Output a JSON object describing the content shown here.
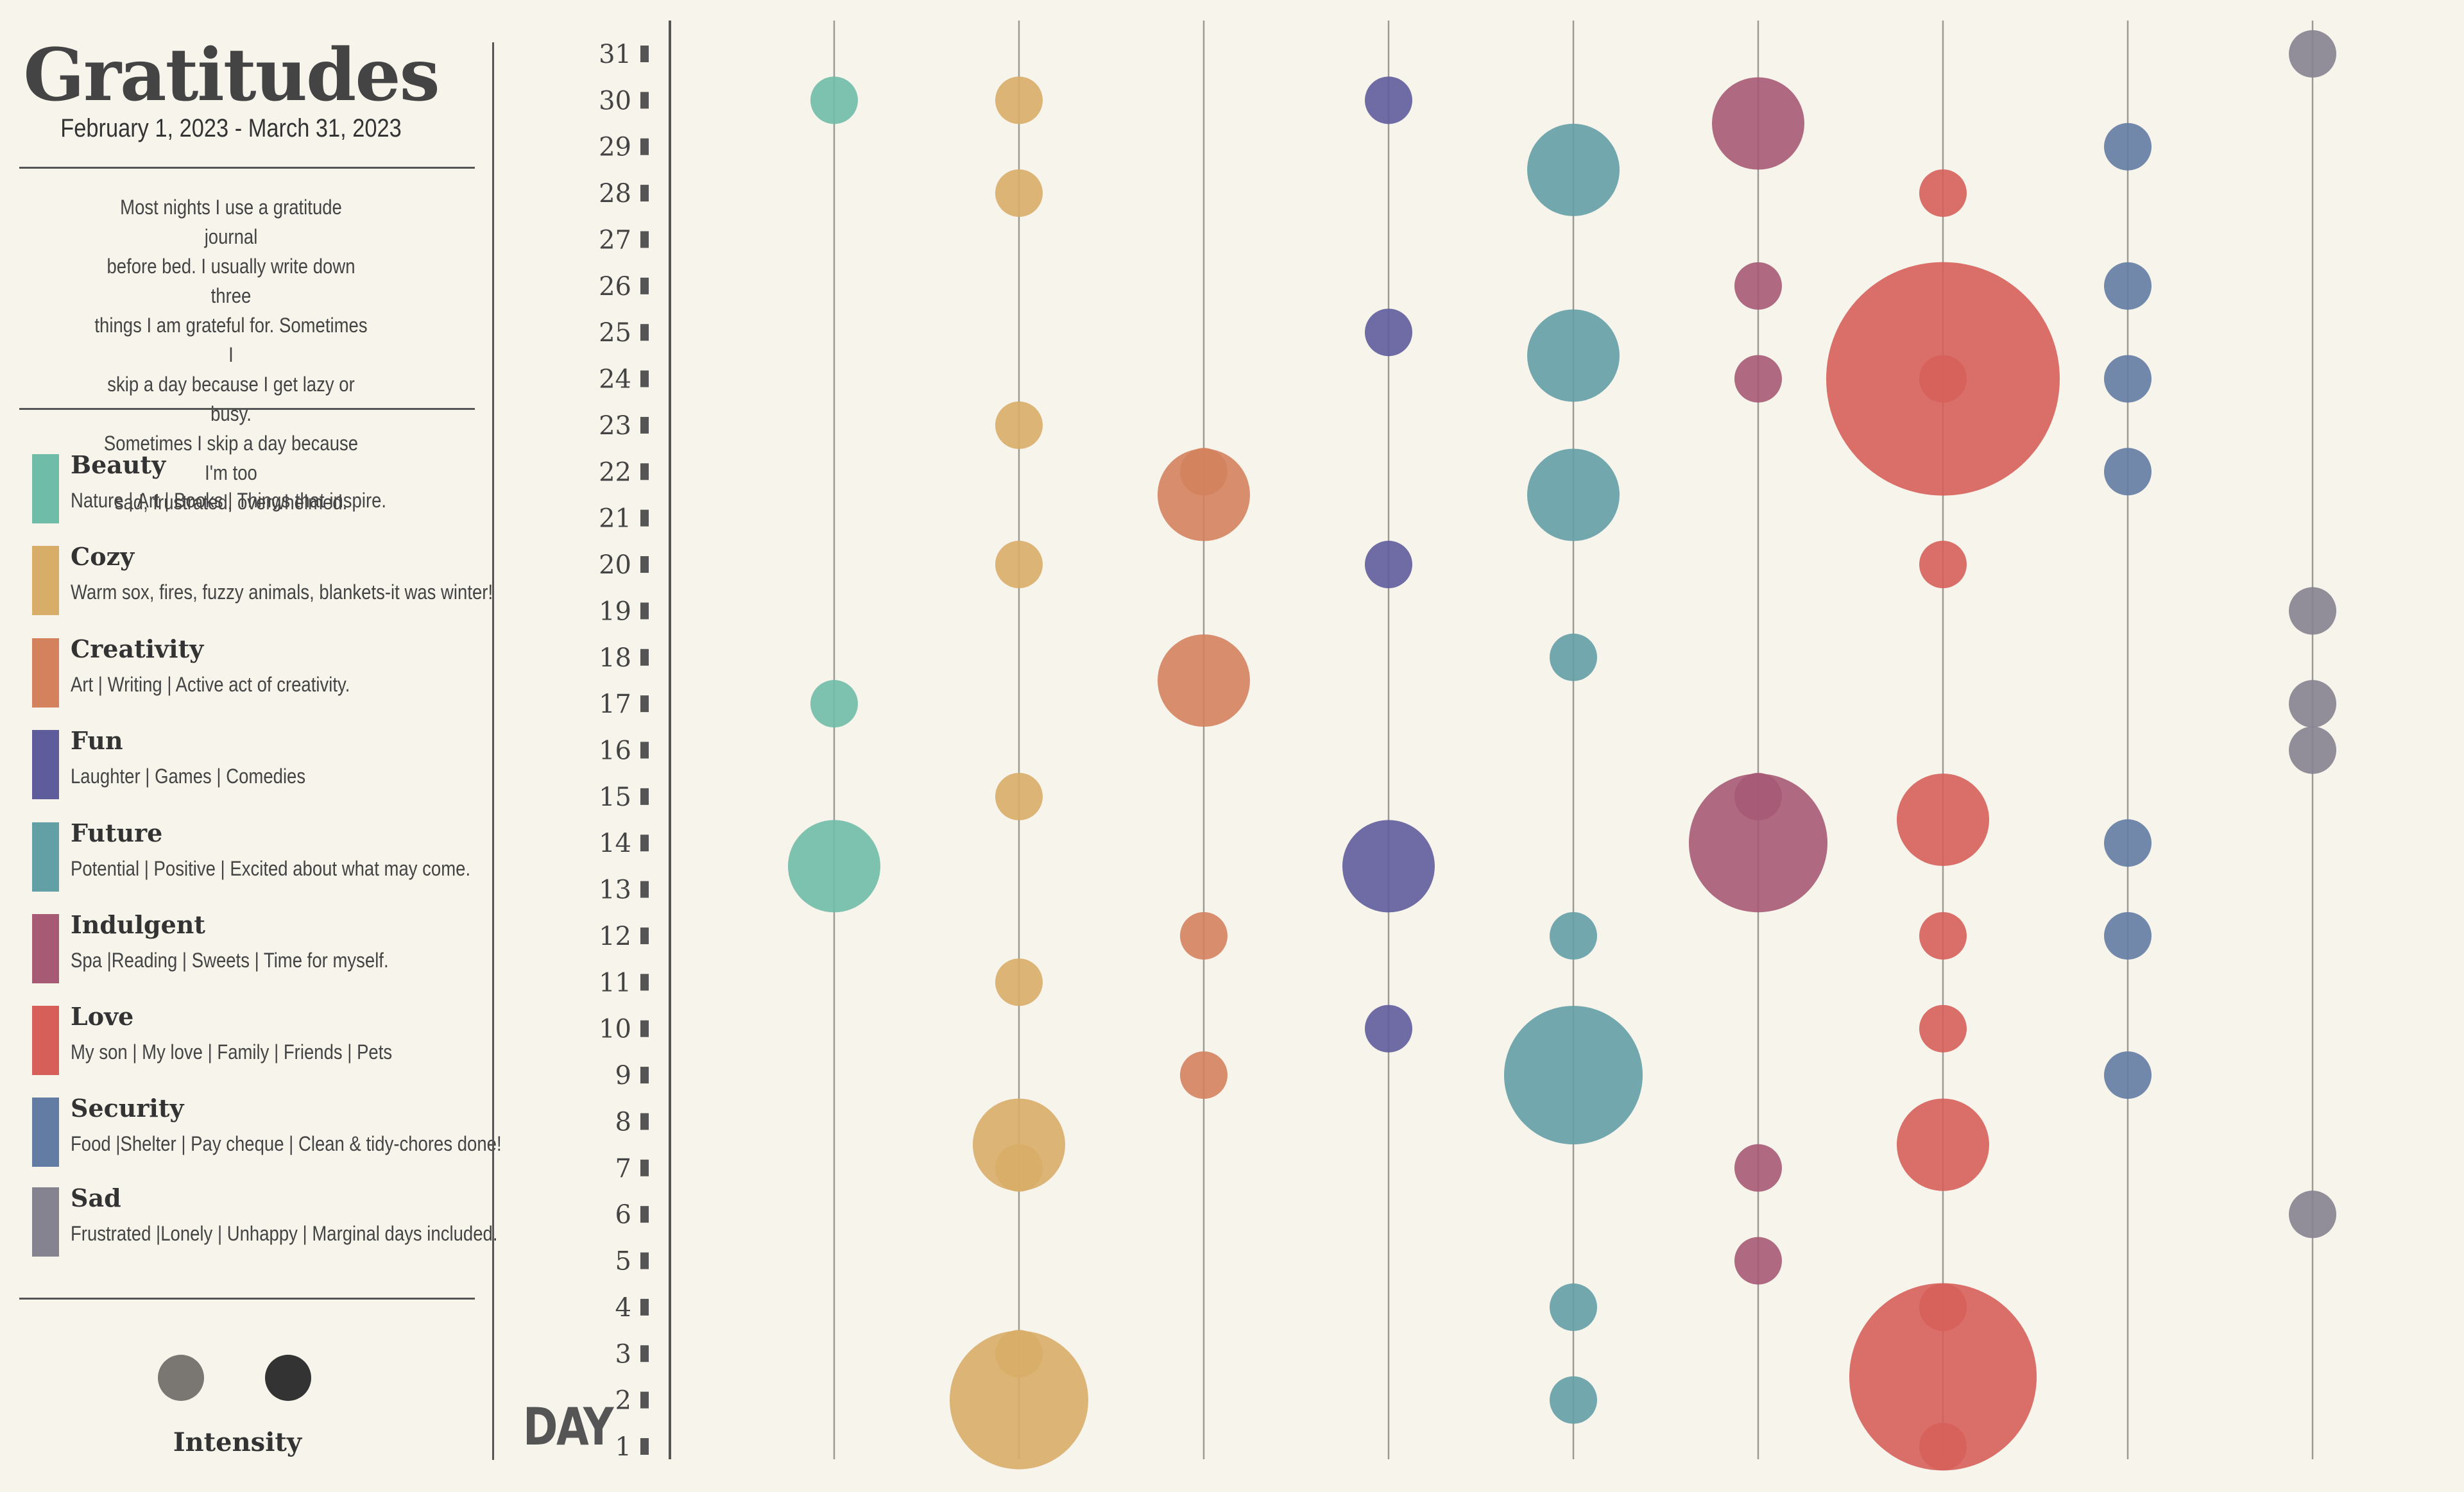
{
  "header": {
    "title": "Gratitudes",
    "subtitle": "February 1, 2023 - March 31, 2023",
    "description_lines": [
      "Most nights I use a gratitude journal",
      "before bed. I usually write down three",
      "things I am grateful for. Sometimes I",
      "skip a day because I get lazy or busy.",
      "Sometimes I skip a day because I'm too",
      "sad, frustrated, overwhelmed."
    ]
  },
  "legend": [
    {
      "name": "Beauty",
      "desc": "Nature | Art | Books | Things that inspire.",
      "color": "#6fbca8"
    },
    {
      "name": "Cozy",
      "desc": "Warm sox, fires, fuzzy animals, blankets-it was winter!",
      "color": "#d8ad68"
    },
    {
      "name": "Creativity",
      "desc": "Art | Writing | Active act of creativity.",
      "color": "#d4825e"
    },
    {
      "name": "Fun",
      "desc": "Laughter | Games | Comedies",
      "color": "#5f5c9c"
    },
    {
      "name": "Future",
      "desc": "Potential | Positive | Excited about what may come.",
      "color": "#63a0a6"
    },
    {
      "name": "Indulgent",
      "desc": "Spa |Reading | Sweets | Time for myself.",
      "color": "#a65a74"
    },
    {
      "name": "Love",
      "desc": "My son | My love | Family | Friends | Pets",
      "color": "#d65f5a"
    },
    {
      "name": "Security",
      "desc": "Food |Shelter | Pay cheque | Clean & tidy-chores done!",
      "color": "#627ca3"
    },
    {
      "name": "Sad",
      "desc": "Frustrated |Lonely | Unhappy | Marginal days included.",
      "color": "#858390"
    }
  ],
  "intensity": {
    "label": "Intensity",
    "colors": [
      "#7a7773",
      "#333333"
    ]
  },
  "chart_data": {
    "type": "scatter",
    "xlabel": "",
    "ylabel": "DAY",
    "yticks": [
      1,
      2,
      3,
      4,
      5,
      6,
      7,
      8,
      9,
      10,
      11,
      12,
      13,
      14,
      15,
      16,
      17,
      18,
      19,
      20,
      21,
      22,
      23,
      24,
      25,
      26,
      27,
      28,
      29,
      30,
      31
    ],
    "ylim": [
      1,
      31
    ],
    "categories": [
      "Beauty",
      "Cozy",
      "Creativity",
      "Fun",
      "Future",
      "Indulgent",
      "Love",
      "Security",
      "Sad"
    ],
    "grid": true,
    "points": [
      {
        "category": "Beauty",
        "day": 30,
        "size": 1
      },
      {
        "category": "Beauty",
        "day": 17,
        "size": 1
      },
      {
        "category": "Beauty",
        "day": 13.5,
        "size": 2
      },
      {
        "category": "Cozy",
        "day": 30,
        "size": 1
      },
      {
        "category": "Cozy",
        "day": 28,
        "size": 1
      },
      {
        "category": "Cozy",
        "day": 23,
        "size": 1
      },
      {
        "category": "Cozy",
        "day": 20,
        "size": 1
      },
      {
        "category": "Cozy",
        "day": 15,
        "size": 1
      },
      {
        "category": "Cozy",
        "day": 11,
        "size": 1
      },
      {
        "category": "Cozy",
        "day": 7.5,
        "size": 2
      },
      {
        "category": "Cozy",
        "day": 7,
        "size": 1
      },
      {
        "category": "Cozy",
        "day": 2,
        "size": 3
      },
      {
        "category": "Cozy",
        "day": 3,
        "size": 1
      },
      {
        "category": "Creativity",
        "day": 21.5,
        "size": 2
      },
      {
        "category": "Creativity",
        "day": 22,
        "size": 1
      },
      {
        "category": "Creativity",
        "day": 17.5,
        "size": 2
      },
      {
        "category": "Creativity",
        "day": 12,
        "size": 1
      },
      {
        "category": "Creativity",
        "day": 9,
        "size": 1
      },
      {
        "category": "Fun",
        "day": 30,
        "size": 1
      },
      {
        "category": "Fun",
        "day": 25,
        "size": 1
      },
      {
        "category": "Fun",
        "day": 20,
        "size": 1
      },
      {
        "category": "Fun",
        "day": 13.5,
        "size": 2
      },
      {
        "category": "Fun",
        "day": 10,
        "size": 1
      },
      {
        "category": "Future",
        "day": 28.5,
        "size": 2
      },
      {
        "category": "Future",
        "day": 24.5,
        "size": 2
      },
      {
        "category": "Future",
        "day": 21.5,
        "size": 2
      },
      {
        "category": "Future",
        "day": 18,
        "size": 1
      },
      {
        "category": "Future",
        "day": 12,
        "size": 1
      },
      {
        "category": "Future",
        "day": 9,
        "size": 3
      },
      {
        "category": "Future",
        "day": 4,
        "size": 1
      },
      {
        "category": "Future",
        "day": 2,
        "size": 1
      },
      {
        "category": "Indulgent",
        "day": 29.5,
        "size": 2
      },
      {
        "category": "Indulgent",
        "day": 26,
        "size": 1
      },
      {
        "category": "Indulgent",
        "day": 24,
        "size": 1
      },
      {
        "category": "Indulgent",
        "day": 14,
        "size": 3
      },
      {
        "category": "Indulgent",
        "day": 15,
        "size": 1
      },
      {
        "category": "Indulgent",
        "day": 7,
        "size": 1
      },
      {
        "category": "Indulgent",
        "day": 5,
        "size": 1
      },
      {
        "category": "Love",
        "day": 28,
        "size": 1
      },
      {
        "category": "Love",
        "day": 24,
        "size": 5
      },
      {
        "category": "Love",
        "day": 24,
        "size": 1
      },
      {
        "category": "Love",
        "day": 20,
        "size": 1
      },
      {
        "category": "Love",
        "day": 14.5,
        "size": 2
      },
      {
        "category": "Love",
        "day": 12,
        "size": 1
      },
      {
        "category": "Love",
        "day": 10,
        "size": 1
      },
      {
        "category": "Love",
        "day": 7.5,
        "size": 2
      },
      {
        "category": "Love",
        "day": 2.5,
        "size": 4
      },
      {
        "category": "Love",
        "day": 4,
        "size": 1
      },
      {
        "category": "Love",
        "day": 1,
        "size": 1
      },
      {
        "category": "Security",
        "day": 29,
        "size": 1
      },
      {
        "category": "Security",
        "day": 26,
        "size": 1
      },
      {
        "category": "Security",
        "day": 24,
        "size": 1
      },
      {
        "category": "Security",
        "day": 22,
        "size": 1
      },
      {
        "category": "Security",
        "day": 14,
        "size": 1
      },
      {
        "category": "Security",
        "day": 12,
        "size": 1
      },
      {
        "category": "Security",
        "day": 9,
        "size": 1
      },
      {
        "category": "Sad",
        "day": 31,
        "size": 1
      },
      {
        "category": "Sad",
        "day": 19,
        "size": 1
      },
      {
        "category": "Sad",
        "day": 17,
        "size": 1
      },
      {
        "category": "Sad",
        "day": 16,
        "size": 1
      },
      {
        "category": "Sad",
        "day": 6,
        "size": 1
      }
    ]
  }
}
